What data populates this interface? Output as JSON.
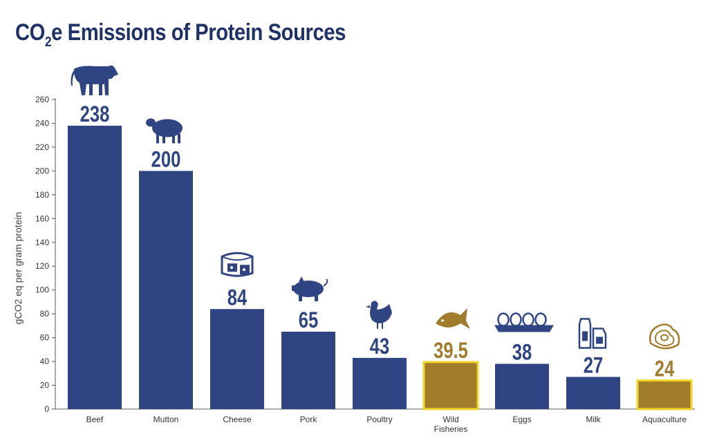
{
  "title": {
    "main": "CO",
    "sub": "2",
    "rest": "e Emissions of Protein Sources"
  },
  "colors": {
    "primary": "#2f4583",
    "highlight": "#a17d2b",
    "highlight_border": "#f1d628",
    "text": "#1f3267"
  },
  "chart_data": {
    "type": "bar",
    "categories": [
      "Beef",
      "Mutton",
      "Cheese",
      "Pork",
      "Poultry",
      "Wild Fisheries",
      "Eggs",
      "Milk",
      "Aquaculture"
    ],
    "values": [
      238,
      200,
      84,
      65,
      43,
      39.5,
      38,
      27,
      24
    ],
    "value_labels": [
      "238",
      "200",
      "84",
      "65",
      "43",
      "39.5",
      "38",
      "27",
      "24"
    ],
    "highlighted": [
      false,
      false,
      false,
      false,
      false,
      true,
      false,
      false,
      true
    ],
    "icons": [
      "cow-icon",
      "sheep-icon",
      "cheese-icon",
      "pig-icon",
      "chicken-icon",
      "fish-icon",
      "eggs-icon",
      "milk-icon",
      "oyster-icon"
    ],
    "ylabel": "gCO2 eq per gram protein",
    "xlabel": "",
    "ylim": [
      0,
      260
    ],
    "yticks": [
      0,
      20,
      40,
      60,
      80,
      100,
      120,
      140,
      160,
      180,
      200,
      220,
      240,
      260
    ],
    "grid": false
  }
}
